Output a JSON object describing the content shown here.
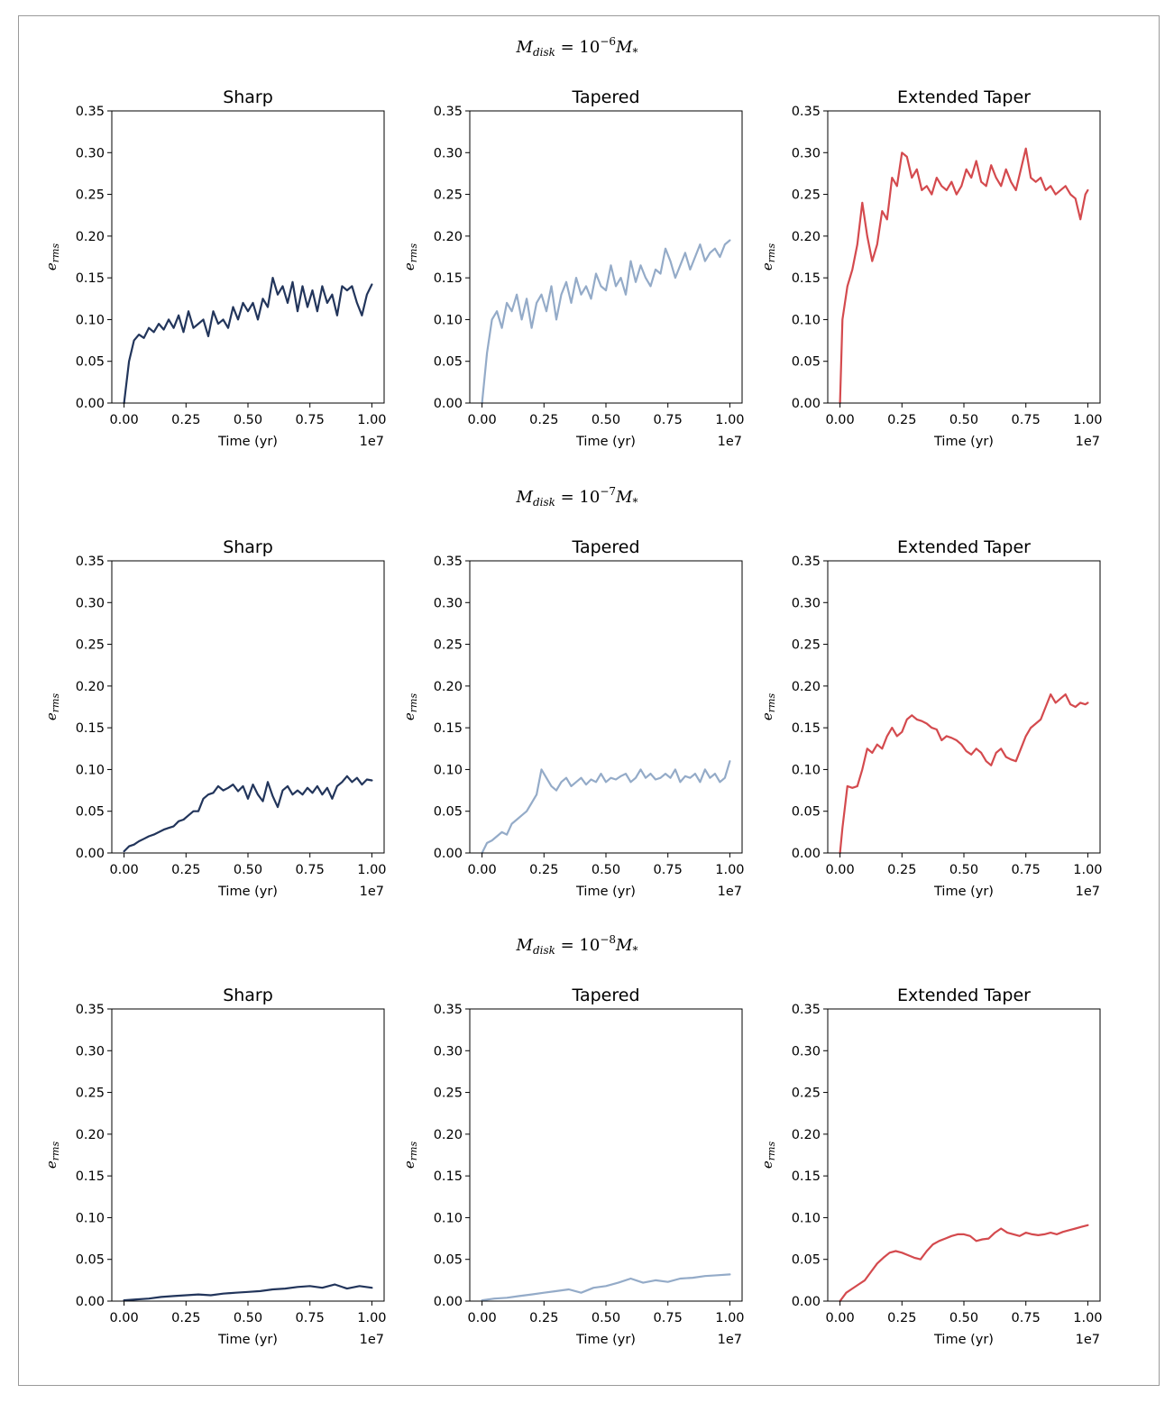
{
  "figure": {
    "row_titles": [
      {
        "pre": "M",
        "sub": "disk",
        "mid": " = 10",
        "sup": "−6",
        "post": "M",
        "postsub": "*"
      },
      {
        "pre": "M",
        "sub": "disk",
        "mid": " = 10",
        "sup": "−7",
        "post": "M",
        "postsub": "*"
      },
      {
        "pre": "M",
        "sub": "disk",
        "mid": " = 10",
        "sup": "−8",
        "post": "M",
        "postsub": "*"
      }
    ],
    "panel_titles": [
      "Sharp",
      "Tapered",
      "Extended Taper"
    ],
    "xlabel": "Time (yr)",
    "x_offset_label": "1e7",
    "ylabel_main": "e",
    "ylabel_sub": "rms",
    "x_ticks": [
      "0.00",
      "0.25",
      "0.50",
      "0.75",
      "1.00"
    ],
    "y_ticks": [
      "0.00",
      "0.05",
      "0.10",
      "0.15",
      "0.20",
      "0.25",
      "0.30",
      "0.35"
    ],
    "colors": {
      "Sharp": "#22355b",
      "Tapered": "#94abc8",
      "Extended Taper": "#d44a4e"
    }
  },
  "chart_data": [
    {
      "type": "line",
      "row": 0,
      "col": 0,
      "title": "Sharp",
      "xlabel": "Time (yr)",
      "ylabel": "e_rms",
      "xlim": [
        0,
        10000000
      ],
      "ylim": [
        0,
        0.35
      ],
      "series": [
        {
          "color": "#22355b",
          "x": [
            0,
            200000,
            400000,
            600000,
            800000,
            1000000,
            1200000,
            1400000,
            1600000,
            1800000,
            2000000,
            2200000,
            2400000,
            2600000,
            2800000,
            3000000,
            3200000,
            3400000,
            3600000,
            3800000,
            4000000,
            4200000,
            4400000,
            4600000,
            4800000,
            5000000,
            5200000,
            5400000,
            5600000,
            5800000,
            6000000,
            6200000,
            6400000,
            6600000,
            6800000,
            7000000,
            7200000,
            7400000,
            7600000,
            7800000,
            8000000,
            8200000,
            8400000,
            8600000,
            8800000,
            9000000,
            9200000,
            9400000,
            9600000,
            9800000,
            10000000
          ],
          "y": [
            0.0,
            0.05,
            0.075,
            0.082,
            0.078,
            0.09,
            0.085,
            0.095,
            0.088,
            0.1,
            0.09,
            0.105,
            0.085,
            0.11,
            0.09,
            0.095,
            0.1,
            0.08,
            0.11,
            0.095,
            0.1,
            0.09,
            0.115,
            0.1,
            0.12,
            0.11,
            0.12,
            0.1,
            0.125,
            0.115,
            0.15,
            0.13,
            0.14,
            0.12,
            0.145,
            0.11,
            0.14,
            0.115,
            0.135,
            0.11,
            0.14,
            0.12,
            0.13,
            0.105,
            0.14,
            0.135,
            0.14,
            0.12,
            0.105,
            0.13,
            0.142
          ]
        }
      ]
    },
    {
      "type": "line",
      "row": 0,
      "col": 1,
      "title": "Tapered",
      "xlabel": "Time (yr)",
      "ylabel": "e_rms",
      "xlim": [
        0,
        10000000
      ],
      "ylim": [
        0,
        0.35
      ],
      "series": [
        {
          "color": "#94abc8",
          "x": [
            0,
            200000,
            400000,
            600000,
            800000,
            1000000,
            1200000,
            1400000,
            1600000,
            1800000,
            2000000,
            2200000,
            2400000,
            2600000,
            2800000,
            3000000,
            3200000,
            3400000,
            3600000,
            3800000,
            4000000,
            4200000,
            4400000,
            4600000,
            4800000,
            5000000,
            5200000,
            5400000,
            5600000,
            5800000,
            6000000,
            6200000,
            6400000,
            6600000,
            6800000,
            7000000,
            7200000,
            7400000,
            7600000,
            7800000,
            8000000,
            8200000,
            8400000,
            8600000,
            8800000,
            9000000,
            9200000,
            9400000,
            9600000,
            9800000,
            10000000
          ],
          "y": [
            0.0,
            0.06,
            0.1,
            0.11,
            0.09,
            0.12,
            0.11,
            0.13,
            0.1,
            0.125,
            0.09,
            0.12,
            0.13,
            0.11,
            0.14,
            0.1,
            0.13,
            0.145,
            0.12,
            0.15,
            0.13,
            0.14,
            0.125,
            0.155,
            0.14,
            0.135,
            0.165,
            0.14,
            0.15,
            0.13,
            0.17,
            0.145,
            0.165,
            0.15,
            0.14,
            0.16,
            0.155,
            0.185,
            0.17,
            0.15,
            0.165,
            0.18,
            0.16,
            0.175,
            0.19,
            0.17,
            0.18,
            0.185,
            0.175,
            0.19,
            0.195
          ]
        }
      ]
    },
    {
      "type": "line",
      "row": 0,
      "col": 2,
      "title": "Extended Taper",
      "xlabel": "Time (yr)",
      "ylabel": "e_rms",
      "xlim": [
        0,
        10000000
      ],
      "ylim": [
        0,
        0.35
      ],
      "series": [
        {
          "color": "#d44a4e",
          "x": [
            0,
            100000,
            300000,
            500000,
            700000,
            900000,
            1100000,
            1300000,
            1500000,
            1700000,
            1900000,
            2100000,
            2300000,
            2500000,
            2700000,
            2900000,
            3100000,
            3300000,
            3500000,
            3700000,
            3900000,
            4100000,
            4300000,
            4500000,
            4700000,
            4900000,
            5100000,
            5300000,
            5500000,
            5700000,
            5900000,
            6100000,
            6300000,
            6500000,
            6700000,
            6900000,
            7100000,
            7300000,
            7500000,
            7700000,
            7900000,
            8100000,
            8300000,
            8500000,
            8700000,
            8900000,
            9100000,
            9300000,
            9500000,
            9700000,
            9900000,
            10000000
          ],
          "y": [
            0.0,
            0.1,
            0.14,
            0.16,
            0.19,
            0.24,
            0.2,
            0.17,
            0.19,
            0.23,
            0.22,
            0.27,
            0.26,
            0.3,
            0.295,
            0.27,
            0.28,
            0.255,
            0.26,
            0.25,
            0.27,
            0.26,
            0.255,
            0.265,
            0.25,
            0.26,
            0.28,
            0.27,
            0.29,
            0.265,
            0.26,
            0.285,
            0.27,
            0.26,
            0.28,
            0.265,
            0.255,
            0.28,
            0.305,
            0.27,
            0.265,
            0.27,
            0.255,
            0.26,
            0.25,
            0.255,
            0.26,
            0.25,
            0.245,
            0.22,
            0.25,
            0.255
          ]
        }
      ]
    },
    {
      "type": "line",
      "row": 1,
      "col": 0,
      "title": "Sharp",
      "xlabel": "Time (yr)",
      "ylabel": "e_rms",
      "xlim": [
        0,
        10000000
      ],
      "ylim": [
        0,
        0.35
      ],
      "series": [
        {
          "color": "#22355b",
          "x": [
            0,
            200000,
            400000,
            600000,
            800000,
            1000000,
            1200000,
            1400000,
            1600000,
            1800000,
            2000000,
            2200000,
            2400000,
            2600000,
            2800000,
            3000000,
            3200000,
            3400000,
            3600000,
            3800000,
            4000000,
            4200000,
            4400000,
            4600000,
            4800000,
            5000000,
            5200000,
            5400000,
            5600000,
            5800000,
            6000000,
            6200000,
            6400000,
            6600000,
            6800000,
            7000000,
            7200000,
            7400000,
            7600000,
            7800000,
            8000000,
            8200000,
            8400000,
            8600000,
            8800000,
            9000000,
            9200000,
            9400000,
            9600000,
            9800000,
            10000000
          ],
          "y": [
            0.002,
            0.008,
            0.01,
            0.014,
            0.017,
            0.02,
            0.022,
            0.025,
            0.028,
            0.03,
            0.032,
            0.038,
            0.04,
            0.045,
            0.05,
            0.05,
            0.065,
            0.07,
            0.072,
            0.08,
            0.075,
            0.078,
            0.082,
            0.074,
            0.08,
            0.065,
            0.082,
            0.07,
            0.062,
            0.085,
            0.068,
            0.055,
            0.075,
            0.08,
            0.07,
            0.075,
            0.07,
            0.078,
            0.072,
            0.08,
            0.07,
            0.078,
            0.065,
            0.08,
            0.085,
            0.092,
            0.085,
            0.09,
            0.082,
            0.088,
            0.087
          ]
        }
      ]
    },
    {
      "type": "line",
      "row": 1,
      "col": 1,
      "title": "Tapered",
      "xlabel": "Time (yr)",
      "ylabel": "e_rms",
      "xlim": [
        0,
        10000000
      ],
      "ylim": [
        0,
        0.35
      ],
      "series": [
        {
          "color": "#94abc8",
          "x": [
            0,
            200000,
            400000,
            600000,
            800000,
            1000000,
            1200000,
            1400000,
            1600000,
            1800000,
            2000000,
            2200000,
            2400000,
            2600000,
            2800000,
            3000000,
            3200000,
            3400000,
            3600000,
            3800000,
            4000000,
            4200000,
            4400000,
            4600000,
            4800000,
            5000000,
            5200000,
            5400000,
            5600000,
            5800000,
            6000000,
            6200000,
            6400000,
            6600000,
            6800000,
            7000000,
            7200000,
            7400000,
            7600000,
            7800000,
            8000000,
            8200000,
            8400000,
            8600000,
            8800000,
            9000000,
            9200000,
            9400000,
            9600000,
            9800000,
            10000000
          ],
          "y": [
            0.0,
            0.012,
            0.015,
            0.02,
            0.025,
            0.022,
            0.035,
            0.04,
            0.045,
            0.05,
            0.06,
            0.07,
            0.1,
            0.09,
            0.08,
            0.075,
            0.085,
            0.09,
            0.08,
            0.085,
            0.09,
            0.082,
            0.088,
            0.085,
            0.095,
            0.085,
            0.09,
            0.088,
            0.092,
            0.095,
            0.085,
            0.09,
            0.1,
            0.09,
            0.095,
            0.088,
            0.09,
            0.095,
            0.09,
            0.1,
            0.085,
            0.092,
            0.09,
            0.095,
            0.085,
            0.1,
            0.09,
            0.095,
            0.085,
            0.09,
            0.11
          ]
        }
      ]
    },
    {
      "type": "line",
      "row": 1,
      "col": 2,
      "title": "Extended Taper",
      "xlabel": "Time (yr)",
      "ylabel": "e_rms",
      "xlim": [
        0,
        10000000
      ],
      "ylim": [
        0,
        0.35
      ],
      "series": [
        {
          "color": "#d44a4e",
          "x": [
            0,
            100000,
            300000,
            500000,
            700000,
            900000,
            1100000,
            1300000,
            1500000,
            1700000,
            1900000,
            2100000,
            2300000,
            2500000,
            2700000,
            2900000,
            3100000,
            3300000,
            3500000,
            3700000,
            3900000,
            4100000,
            4300000,
            4500000,
            4700000,
            4900000,
            5100000,
            5300000,
            5500000,
            5700000,
            5900000,
            6100000,
            6300000,
            6500000,
            6700000,
            6900000,
            7100000,
            7300000,
            7500000,
            7700000,
            7900000,
            8100000,
            8300000,
            8500000,
            8700000,
            8900000,
            9100000,
            9300000,
            9500000,
            9700000,
            9900000,
            10000000
          ],
          "y": [
            0.0,
            0.03,
            0.08,
            0.078,
            0.08,
            0.1,
            0.125,
            0.12,
            0.13,
            0.125,
            0.14,
            0.15,
            0.14,
            0.145,
            0.16,
            0.165,
            0.16,
            0.158,
            0.155,
            0.15,
            0.148,
            0.135,
            0.14,
            0.138,
            0.135,
            0.13,
            0.122,
            0.118,
            0.125,
            0.12,
            0.11,
            0.105,
            0.12,
            0.125,
            0.115,
            0.112,
            0.11,
            0.125,
            0.14,
            0.15,
            0.155,
            0.16,
            0.175,
            0.19,
            0.18,
            0.185,
            0.19,
            0.178,
            0.175,
            0.18,
            0.178,
            0.18
          ]
        }
      ]
    },
    {
      "type": "line",
      "row": 2,
      "col": 0,
      "title": "Sharp",
      "xlabel": "Time (yr)",
      "ylabel": "e_rms",
      "xlim": [
        0,
        10000000
      ],
      "ylim": [
        0,
        0.35
      ],
      "series": [
        {
          "color": "#22355b",
          "x": [
            0,
            500000,
            1000000,
            1500000,
            2000000,
            2500000,
            3000000,
            3500000,
            4000000,
            4500000,
            5000000,
            5500000,
            6000000,
            6500000,
            7000000,
            7500000,
            8000000,
            8500000,
            9000000,
            9500000,
            10000000
          ],
          "y": [
            0.001,
            0.002,
            0.003,
            0.005,
            0.006,
            0.007,
            0.008,
            0.007,
            0.009,
            0.01,
            0.011,
            0.012,
            0.014,
            0.015,
            0.017,
            0.018,
            0.016,
            0.02,
            0.015,
            0.018,
            0.016
          ]
        }
      ]
    },
    {
      "type": "line",
      "row": 2,
      "col": 1,
      "title": "Tapered",
      "xlabel": "Time (yr)",
      "ylabel": "e_rms",
      "xlim": [
        0,
        10000000
      ],
      "ylim": [
        0,
        0.35
      ],
      "series": [
        {
          "color": "#94abc8",
          "x": [
            0,
            500000,
            1000000,
            1500000,
            2000000,
            2500000,
            3000000,
            3500000,
            4000000,
            4500000,
            5000000,
            5500000,
            6000000,
            6500000,
            7000000,
            7500000,
            8000000,
            8500000,
            9000000,
            9500000,
            10000000
          ],
          "y": [
            0.001,
            0.003,
            0.004,
            0.006,
            0.008,
            0.01,
            0.012,
            0.014,
            0.01,
            0.016,
            0.018,
            0.022,
            0.027,
            0.022,
            0.025,
            0.023,
            0.027,
            0.028,
            0.03,
            0.031,
            0.032
          ]
        }
      ]
    },
    {
      "type": "line",
      "row": 2,
      "col": 2,
      "title": "Extended Taper",
      "xlabel": "Time (yr)",
      "ylabel": "e_rms",
      "xlim": [
        0,
        10000000
      ],
      "ylim": [
        0,
        0.35
      ],
      "series": [
        {
          "color": "#d44a4e",
          "x": [
            0,
            250000,
            500000,
            750000,
            1000000,
            1250000,
            1500000,
            1750000,
            2000000,
            2250000,
            2500000,
            2750000,
            3000000,
            3250000,
            3500000,
            3750000,
            4000000,
            4250000,
            4500000,
            4750000,
            5000000,
            5250000,
            5500000,
            5750000,
            6000000,
            6250000,
            6500000,
            6750000,
            7000000,
            7250000,
            7500000,
            7750000,
            8000000,
            8250000,
            8500000,
            8750000,
            9000000,
            9250000,
            9500000,
            9750000,
            10000000
          ],
          "y": [
            0.0,
            0.01,
            0.015,
            0.02,
            0.025,
            0.035,
            0.045,
            0.052,
            0.058,
            0.06,
            0.058,
            0.055,
            0.052,
            0.05,
            0.06,
            0.068,
            0.072,
            0.075,
            0.078,
            0.08,
            0.08,
            0.078,
            0.072,
            0.074,
            0.075,
            0.082,
            0.087,
            0.082,
            0.08,
            0.078,
            0.082,
            0.08,
            0.079,
            0.08,
            0.082,
            0.08,
            0.083,
            0.085,
            0.087,
            0.089,
            0.091
          ]
        }
      ]
    }
  ]
}
